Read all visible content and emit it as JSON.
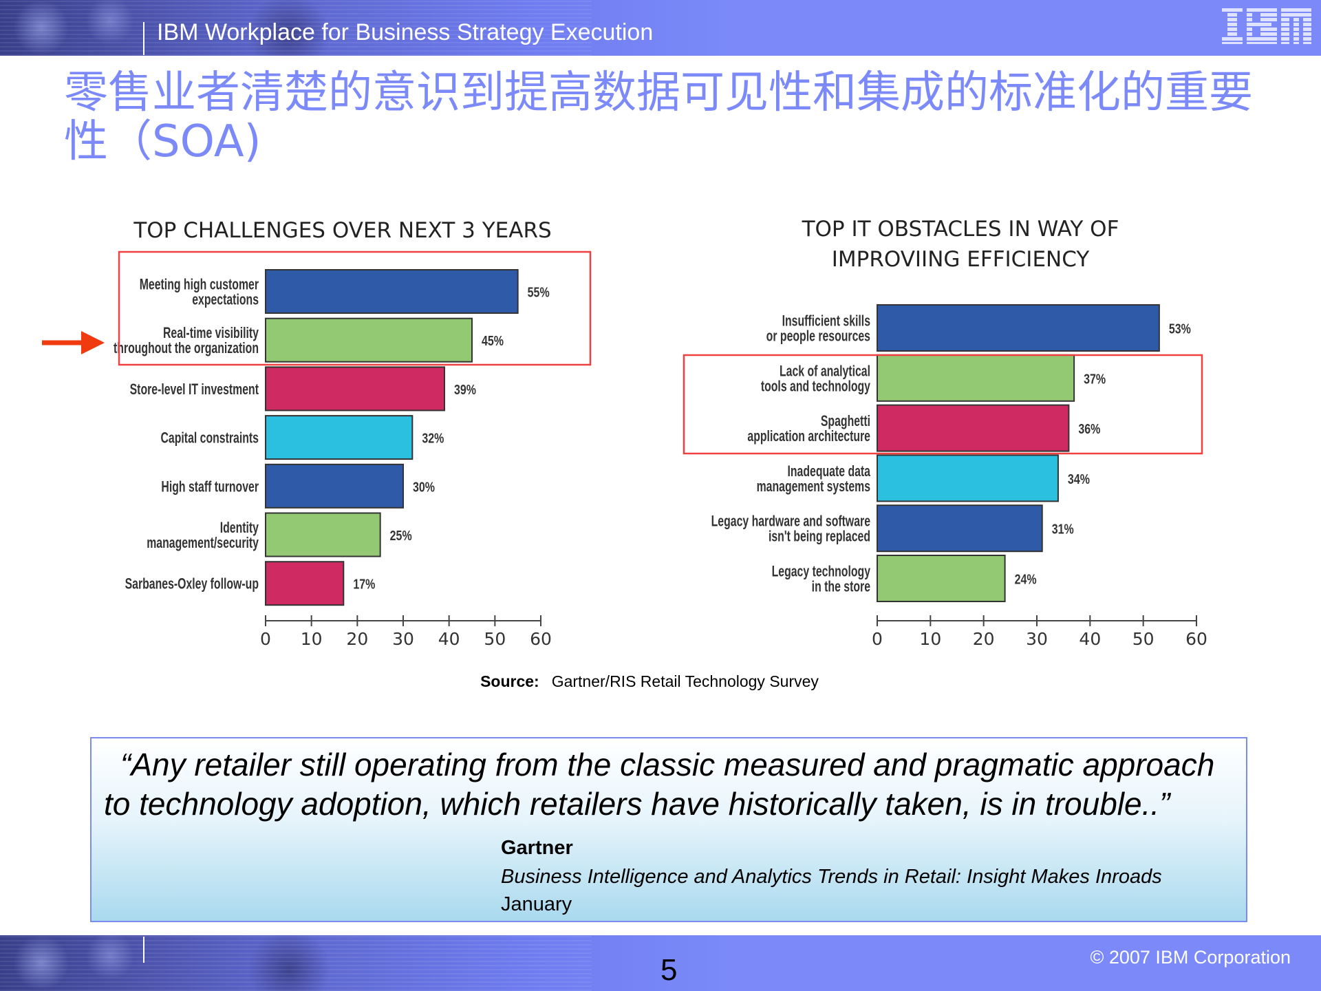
{
  "header": {
    "title": "IBM Workplace for Business Strategy Execution",
    "logo_text": "IBM"
  },
  "slide": {
    "title": "零售业者清楚的意识到提高数据可见性和集成的标准化的重要性（SOA)",
    "source_label": "Source:",
    "source_text": "Gartner/RIS  Retail Technology Survey",
    "quote": "“Any retailer still operating from the classic measured and pragmatic approach to technology adoption, which retailers have historically taken, is in trouble..”",
    "quote_author": "Gartner",
    "quote_publication": "Business Intelligence and Analytics Trends in Retail: Insight Makes Inroads",
    "quote_date": "January",
    "page_number": "5",
    "copyright": "© 2007 IBM Corporation"
  },
  "colors": {
    "brand": "#7b8af8",
    "highlight_box": "#f04040",
    "arrow": "#f03a10"
  },
  "chart_data": [
    {
      "type": "bar",
      "orientation": "horizontal",
      "title": "TOP CHALLENGES OVER NEXT 3 YEARS",
      "categories": [
        [
          "Meeting high customer",
          "expectations"
        ],
        [
          "Real-time visibility",
          "throughout the organization"
        ],
        [
          "Store-level IT investment"
        ],
        [
          "Capital constraints"
        ],
        [
          "High staff turnover"
        ],
        [
          "Identity",
          "management/security"
        ],
        [
          "Sarbanes-Oxley follow-up"
        ]
      ],
      "values": [
        55,
        45,
        39,
        32,
        30,
        25,
        17
      ],
      "data_labels": [
        "55%",
        "45%",
        "39%",
        "32%",
        "30%",
        "25%",
        "17%"
      ],
      "bar_colors": [
        "#2f5aa8",
        "#93c972",
        "#cf2a62",
        "#2bbfe0",
        "#2f5aa8",
        "#93c972",
        "#cf2a62"
      ],
      "xlim": [
        0,
        60
      ],
      "xticks": [
        "0",
        "10",
        "20",
        "30",
        "40",
        "50",
        "60"
      ],
      "highlighted": [
        0,
        1
      ],
      "arrow_points_to": 1
    },
    {
      "type": "bar",
      "orientation": "horizontal",
      "title": "TOP IT OBSTACLES IN WAY OF IMPROVIING EFFICIENCY",
      "title_lines": [
        "TOP IT OBSTACLES IN WAY OF",
        "IMPROVIING EFFICIENCY"
      ],
      "categories": [
        [
          "Insufficient skills",
          "or people resources"
        ],
        [
          "Lack of analytical",
          "tools and technology"
        ],
        [
          "Spaghetti",
          "application architecture"
        ],
        [
          "Inadequate data",
          "management systems"
        ],
        [
          "Legacy hardware and software",
          "isn't being replaced"
        ],
        [
          "Legacy technology",
          "in the store"
        ]
      ],
      "values": [
        53,
        37,
        36,
        34,
        31,
        24
      ],
      "data_labels": [
        "53%",
        "37%",
        "36%",
        "34%",
        "31%",
        "24%"
      ],
      "bar_colors": [
        "#2f5aa8",
        "#93c972",
        "#cf2a62",
        "#2bbfe0",
        "#2f5aa8",
        "#93c972"
      ],
      "xlim": [
        0,
        60
      ],
      "xticks": [
        "0",
        "10",
        "20",
        "30",
        "40",
        "50",
        "60"
      ],
      "highlighted": [
        1,
        2
      ]
    }
  ]
}
